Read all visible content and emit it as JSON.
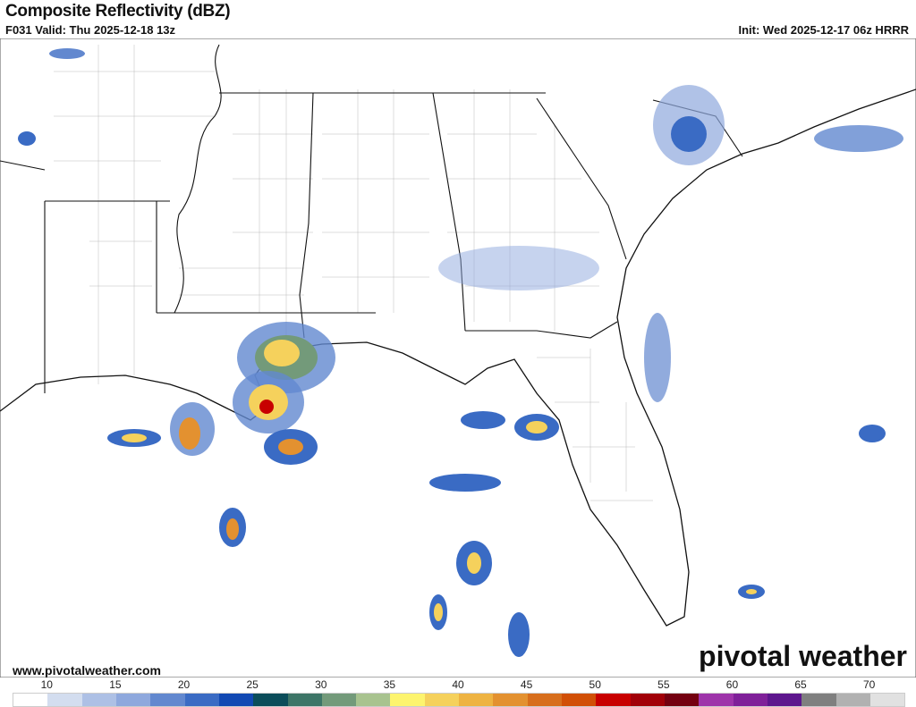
{
  "header": {
    "title": "Composite Reflectivity (dBZ)",
    "valid": "F031 Valid: Thu 2025-12-18 13z",
    "init": "Init: Wed 2025-12-17 06z HRRR"
  },
  "footer": {
    "website": "www.pivotalweather.com",
    "logo": "pivotal weather"
  },
  "colorbar": {
    "tick_labels": [
      "10",
      "15",
      "20",
      "25",
      "30",
      "35",
      "40",
      "45",
      "50",
      "55",
      "60",
      "65",
      "70"
    ],
    "tick_values": [
      10,
      15,
      20,
      25,
      30,
      35,
      40,
      45,
      50,
      55,
      60,
      65,
      70
    ],
    "colors": [
      "#ffffff",
      "#d3ddef",
      "#adc0e5",
      "#8ea8dd",
      "#6288cf",
      "#3a6bc4",
      "#1249b3",
      "#0b4d5a",
      "#3d7567",
      "#739a7a",
      "#a8c38f",
      "#fdf46e",
      "#f5d15c",
      "#eeb342",
      "#e39130",
      "#d76e1c",
      "#d14f06",
      "#c80000",
      "#a10008",
      "#740010",
      "#9e34aa",
      "#7f2099",
      "#5d168d",
      "#7f7f7f",
      "#b1b1b1",
      "#e1e1e1"
    ],
    "min": 7.5,
    "step": 2.5
  }
}
